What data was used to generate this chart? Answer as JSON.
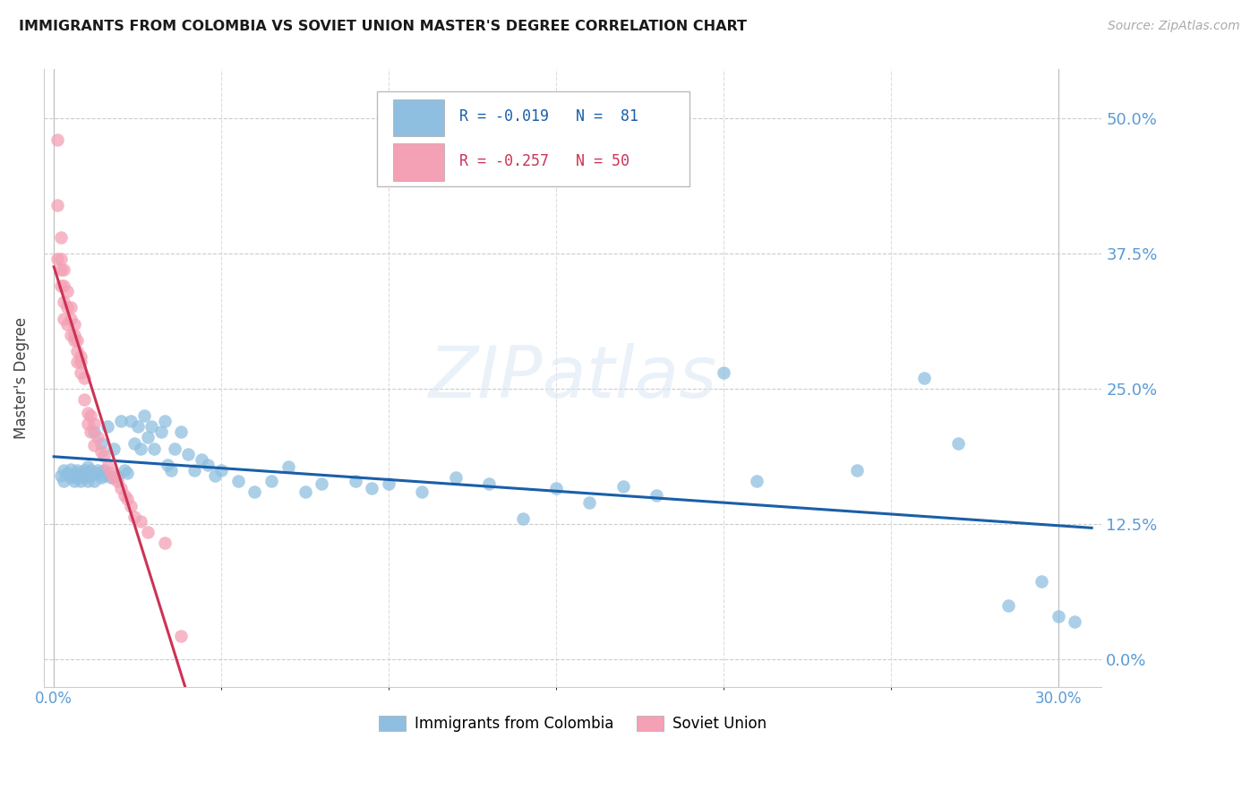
{
  "title": "IMMIGRANTS FROM COLOMBIA VS SOVIET UNION MASTER'S DEGREE CORRELATION CHART",
  "source": "Source: ZipAtlas.com",
  "ylabel_ticks": [
    0.0,
    12.5,
    25.0,
    37.5,
    50.0
  ],
  "xlim": [
    -0.003,
    0.313
  ],
  "ylim": [
    -0.025,
    0.545
  ],
  "ylabel": "Master's Degree",
  "legend1_label": "Immigrants from Colombia",
  "legend2_label": "Soviet Union",
  "r1": -0.019,
  "n1": 81,
  "r2": -0.257,
  "n2": 50,
  "color_blue": "#8fbfe0",
  "color_pink": "#f4a0b5",
  "color_blue_dark": "#1a5fa8",
  "color_pink_dark": "#cc3355",
  "colombia_x": [
    0.002,
    0.003,
    0.003,
    0.004,
    0.005,
    0.005,
    0.006,
    0.006,
    0.007,
    0.007,
    0.007,
    0.008,
    0.008,
    0.009,
    0.009,
    0.01,
    0.01,
    0.01,
    0.011,
    0.011,
    0.012,
    0.012,
    0.013,
    0.013,
    0.014,
    0.014,
    0.015,
    0.015,
    0.016,
    0.017,
    0.018,
    0.019,
    0.02,
    0.021,
    0.022,
    0.023,
    0.024,
    0.025,
    0.026,
    0.027,
    0.028,
    0.029,
    0.03,
    0.032,
    0.033,
    0.034,
    0.035,
    0.036,
    0.038,
    0.04,
    0.042,
    0.044,
    0.046,
    0.048,
    0.05,
    0.055,
    0.06,
    0.065,
    0.07,
    0.075,
    0.08,
    0.09,
    0.095,
    0.1,
    0.11,
    0.12,
    0.13,
    0.14,
    0.15,
    0.16,
    0.17,
    0.18,
    0.2,
    0.21,
    0.24,
    0.26,
    0.27,
    0.285,
    0.295,
    0.3,
    0.305
  ],
  "colombia_y": [
    0.17,
    0.175,
    0.165,
    0.172,
    0.168,
    0.176,
    0.17,
    0.165,
    0.172,
    0.168,
    0.175,
    0.17,
    0.165,
    0.175,
    0.168,
    0.172,
    0.165,
    0.178,
    0.17,
    0.175,
    0.21,
    0.165,
    0.172,
    0.175,
    0.168,
    0.2,
    0.17,
    0.175,
    0.215,
    0.168,
    0.195,
    0.17,
    0.22,
    0.175,
    0.172,
    0.22,
    0.2,
    0.215,
    0.195,
    0.225,
    0.205,
    0.215,
    0.195,
    0.21,
    0.22,
    0.18,
    0.175,
    0.195,
    0.21,
    0.19,
    0.175,
    0.185,
    0.18,
    0.17,
    0.175,
    0.165,
    0.155,
    0.165,
    0.178,
    0.155,
    0.162,
    0.165,
    0.158,
    0.162,
    0.155,
    0.168,
    0.162,
    0.13,
    0.158,
    0.145,
    0.16,
    0.152,
    0.265,
    0.165,
    0.175,
    0.26,
    0.2,
    0.05,
    0.072,
    0.04,
    0.035
  ],
  "soviet_x": [
    0.001,
    0.001,
    0.001,
    0.002,
    0.002,
    0.002,
    0.002,
    0.003,
    0.003,
    0.003,
    0.003,
    0.004,
    0.004,
    0.004,
    0.005,
    0.005,
    0.005,
    0.006,
    0.006,
    0.006,
    0.007,
    0.007,
    0.007,
    0.008,
    0.008,
    0.008,
    0.009,
    0.009,
    0.01,
    0.01,
    0.011,
    0.011,
    0.012,
    0.012,
    0.013,
    0.014,
    0.015,
    0.016,
    0.017,
    0.018,
    0.019,
    0.02,
    0.021,
    0.022,
    0.023,
    0.024,
    0.026,
    0.028,
    0.033,
    0.038
  ],
  "soviet_y": [
    0.48,
    0.42,
    0.37,
    0.39,
    0.37,
    0.36,
    0.345,
    0.36,
    0.345,
    0.33,
    0.315,
    0.34,
    0.325,
    0.31,
    0.325,
    0.3,
    0.315,
    0.31,
    0.295,
    0.3,
    0.285,
    0.295,
    0.275,
    0.28,
    0.265,
    0.275,
    0.26,
    0.24,
    0.228,
    0.218,
    0.225,
    0.21,
    0.218,
    0.198,
    0.205,
    0.192,
    0.188,
    0.178,
    0.172,
    0.168,
    0.165,
    0.158,
    0.152,
    0.148,
    0.142,
    0.132,
    0.128,
    0.118,
    0.108,
    0.022
  ]
}
